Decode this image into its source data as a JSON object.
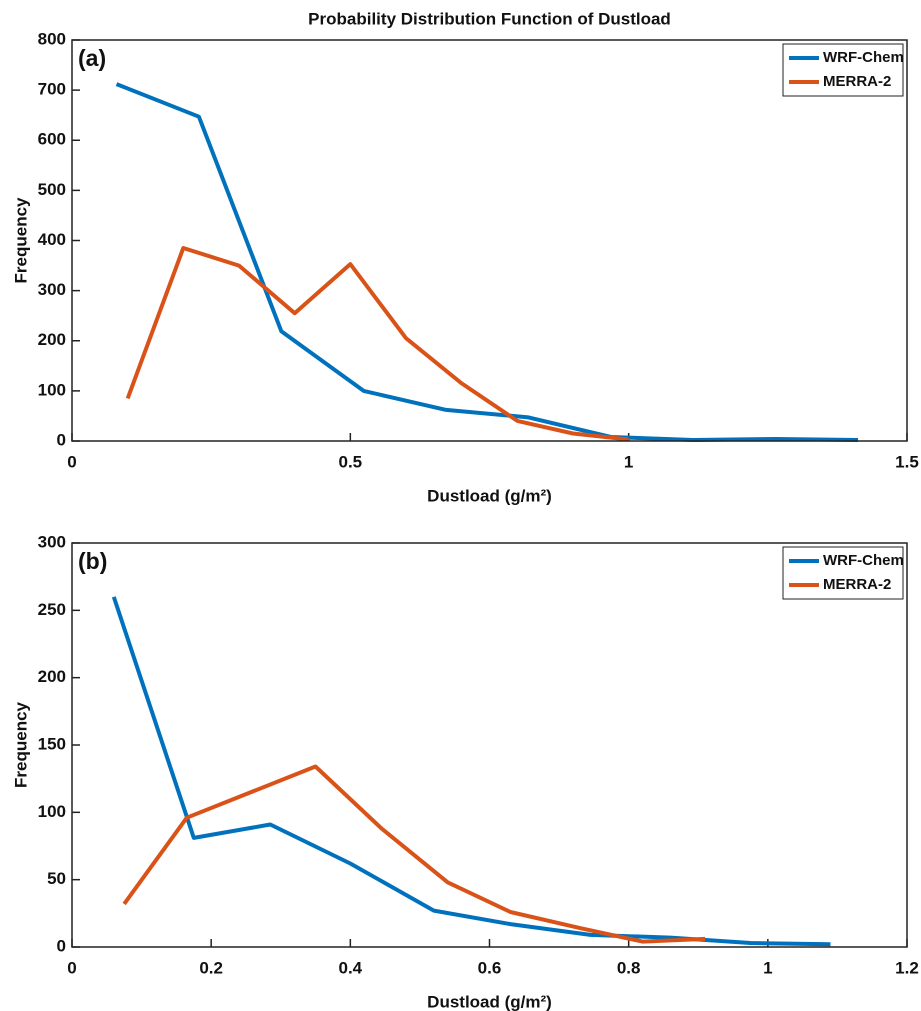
{
  "chart_data": [
    {
      "type": "line",
      "title": "Probability Distribution Function of Dustload",
      "annotation": "(a)",
      "xlabel": "Dustload (g/m²)",
      "ylabel": "Frequency",
      "series": [
        {
          "name": "WRF-Chem",
          "color": "#0072bd",
          "x": [
            0.08,
            0.228,
            0.376,
            0.524,
            0.672,
            0.82,
            0.968,
            1.116,
            1.264,
            1.412
          ],
          "values": [
            712,
            647,
            219,
            100,
            62,
            47,
            8,
            2,
            4,
            2
          ]
        },
        {
          "name": "MERRA-2",
          "color": "#d95319",
          "x": [
            0.1,
            0.2,
            0.3,
            0.4,
            0.5,
            0.6,
            0.7,
            0.8,
            0.9,
            1.0
          ],
          "values": [
            85,
            385,
            350,
            255,
            353,
            205,
            115,
            40,
            15,
            3
          ]
        }
      ],
      "xlim": [
        0,
        1.5
      ],
      "xticks": [
        0,
        0.5,
        1,
        1.5
      ],
      "ylim": [
        0,
        800
      ],
      "yticks": [
        0,
        100,
        200,
        300,
        400,
        500,
        600,
        700,
        800
      ],
      "legend": "upper right"
    },
    {
      "type": "line",
      "annotation": "(b)",
      "xlabel": "Dustload (g/m²)",
      "ylabel": "Frequency",
      "series": [
        {
          "name": "WRF-Chem",
          "color": "#0072bd",
          "x": [
            0.06,
            0.175,
            0.285,
            0.4,
            0.52,
            0.63,
            0.745,
            0.86,
            0.975,
            1.09
          ],
          "values": [
            260,
            81,
            91,
            62,
            27,
            17,
            9,
            7,
            3,
            2
          ]
        },
        {
          "name": "MERRA-2",
          "color": "#d95319",
          "x": [
            0.075,
            0.165,
            0.35,
            0.445,
            0.54,
            0.63,
            0.73,
            0.82,
            0.91
          ],
          "values": [
            32,
            96,
            134,
            88,
            48,
            26,
            14,
            4,
            6
          ]
        }
      ],
      "xlim": [
        0,
        1.2
      ],
      "xticks": [
        0,
        0.2,
        0.4,
        0.6,
        0.8,
        1,
        1.2
      ],
      "ylim": [
        0,
        300
      ],
      "yticks": [
        0,
        50,
        100,
        150,
        200,
        250,
        300
      ],
      "legend": "upper right"
    }
  ]
}
